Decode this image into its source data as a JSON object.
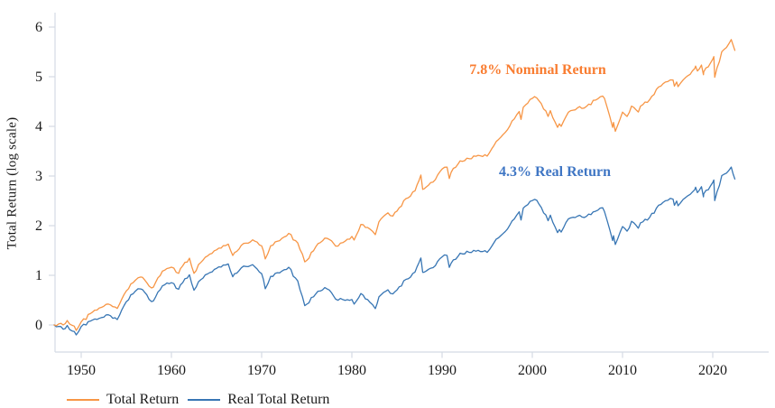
{
  "chart_data": {
    "type": "line",
    "title": "",
    "xlabel": "",
    "ylabel": "Total Return (log scale)",
    "x_ticks": [
      1950,
      1960,
      1970,
      1980,
      1990,
      2000,
      2010,
      2020
    ],
    "y_ticks": [
      0,
      1,
      2,
      3,
      4,
      5,
      6
    ],
    "xlim": [
      1947,
      2023.5
    ],
    "ylim": [
      -0.6,
      6.3
    ],
    "grid": false,
    "legend_position": "bottom-left",
    "axis_color": "#d4dae4",
    "tick_text_color": "#1a1a1a",
    "x": [
      1947.0,
      1947.5,
      1948.0,
      1948.45,
      1949.0,
      1949.45,
      1950.0,
      1950.55,
      1951.0,
      1952.0,
      1953.0,
      1954.0,
      1955.0,
      1956.0,
      1956.6,
      1957.0,
      1957.8,
      1958.0,
      1959.0,
      1960.0,
      1960.8,
      1961.0,
      1962.0,
      1962.5,
      1963.0,
      1964.0,
      1965.0,
      1966.0,
      1966.3,
      1966.8,
      1967.0,
      1968.0,
      1969.0,
      1970.0,
      1970.4,
      1971.0,
      1972.0,
      1973.0,
      1974.0,
      1974.78,
      1975.0,
      1976.0,
      1977.0,
      1978.0,
      1978.2,
      1979.0,
      1980.0,
      1980.25,
      1981.0,
      1982.0,
      1982.6,
      1983.0,
      1984.0,
      1984.55,
      1985.0,
      1986.0,
      1987.0,
      1987.65,
      1987.85,
      1988.0,
      1989.0,
      1990.0,
      1990.55,
      1990.8,
      1991.0,
      1992.0,
      1993.0,
      1994.0,
      1995.0,
      1996.0,
      1997.0,
      1998.0,
      1998.55,
      1998.75,
      1999.0,
      2000.0,
      2000.25,
      2001.0,
      2001.75,
      2002.0,
      2002.8,
      2003.0,
      2003.2,
      2004.0,
      2005.0,
      2006.0,
      2007.0,
      2007.8,
      2008.0,
      2008.9,
      2009.0,
      2009.2,
      2010.0,
      2010.5,
      2011.0,
      2011.75,
      2012.0,
      2013.0,
      2014.0,
      2015.0,
      2015.6,
      2015.75,
      2016.0,
      2016.15,
      2017.0,
      2018.0,
      2018.1,
      2018.3,
      2018.75,
      2018.97,
      2019.0,
      2020.0,
      2020.12,
      2020.22,
      2021.0,
      2022.05,
      2022.45
    ],
    "series": [
      {
        "name": "Total Return",
        "color": "#F79646",
        "values": [
          0.0,
          0.02,
          0.0,
          0.09,
          -0.007,
          -0.11,
          0.061,
          0.11,
          0.228,
          0.341,
          0.422,
          0.333,
          0.685,
          0.9,
          0.965,
          0.915,
          0.745,
          0.761,
          1.083,
          1.164,
          1.04,
          1.134,
          1.343,
          1.04,
          1.217,
          1.39,
          1.512,
          1.599,
          1.63,
          1.4,
          1.458,
          1.641,
          1.715,
          1.594,
          1.33,
          1.595,
          1.698,
          1.843,
          1.652,
          1.27,
          1.3,
          1.574,
          1.749,
          1.637,
          1.59,
          1.658,
          1.784,
          1.71,
          2.023,
          1.931,
          1.82,
          2.078,
          2.258,
          2.195,
          2.292,
          2.545,
          2.702,
          3.02,
          2.73,
          2.742,
          2.879,
          3.14,
          3.18,
          2.95,
          3.072,
          3.305,
          3.349,
          3.417,
          3.402,
          3.695,
          3.879,
          4.149,
          4.3,
          4.14,
          4.385,
          4.564,
          4.6,
          4.457,
          4.2,
          4.317,
          3.98,
          4.051,
          4.0,
          4.285,
          4.371,
          4.401,
          4.529,
          4.61,
          4.563,
          3.98,
          4.078,
          3.9,
          4.288,
          4.2,
          4.409,
          4.29,
          4.409,
          4.534,
          4.794,
          4.901,
          4.935,
          4.81,
          4.894,
          4.8,
          4.985,
          5.163,
          5.215,
          5.115,
          5.235,
          5.04,
          5.098,
          5.352,
          5.405,
          4.99,
          5.503,
          5.75,
          5.53
        ]
      },
      {
        "name": "Real Total Return",
        "color": "#3876B4",
        "values": [
          0.0,
          -0.03,
          -0.085,
          -0.01,
          -0.121,
          -0.2,
          -0.032,
          0.0,
          0.077,
          0.132,
          0.206,
          0.109,
          0.469,
          0.68,
          0.725,
          0.666,
          0.47,
          0.483,
          0.788,
          0.851,
          0.72,
          0.808,
          1.01,
          0.7,
          0.871,
          1.028,
          1.14,
          1.208,
          1.23,
          0.97,
          1.033,
          1.186,
          1.214,
          1.032,
          0.73,
          0.979,
          1.05,
          1.162,
          0.887,
          0.39,
          0.419,
          0.626,
          0.753,
          0.576,
          0.52,
          0.511,
          0.512,
          0.42,
          0.633,
          0.456,
          0.33,
          0.565,
          0.708,
          0.625,
          0.703,
          0.919,
          1.065,
          1.35,
          1.06,
          1.062,
          1.155,
          1.371,
          1.4,
          1.16,
          1.243,
          1.446,
          1.462,
          1.503,
          1.461,
          1.729,
          1.881,
          2.134,
          2.28,
          2.115,
          2.354,
          2.506,
          2.53,
          2.366,
          2.1,
          2.211,
          1.86,
          1.921,
          1.87,
          2.137,
          2.191,
          2.187,
          2.29,
          2.36,
          2.284,
          1.7,
          1.798,
          1.62,
          1.981,
          1.89,
          2.087,
          1.95,
          2.058,
          2.166,
          2.411,
          2.51,
          2.535,
          2.41,
          2.496,
          2.4,
          2.567,
          2.724,
          2.775,
          2.665,
          2.785,
          2.58,
          2.64,
          2.871,
          2.92,
          2.505,
          3.008,
          3.18,
          2.94
        ]
      }
    ],
    "annotations": [
      {
        "text": "7.8% Nominal Return",
        "x": 2000.6,
        "y": 5.13,
        "color": "#F97D31"
      },
      {
        "text": "4.3% Real Return",
        "x": 2002.5,
        "y": 3.07,
        "color": "#3F76C4"
      }
    ]
  }
}
